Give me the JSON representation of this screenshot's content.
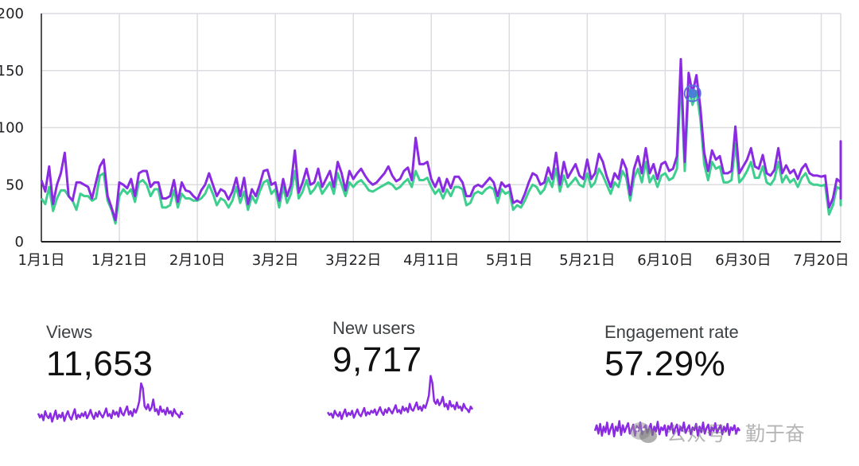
{
  "colors": {
    "views": "#8a2be2",
    "new_users": "#3ecf8e",
    "grid": "#dadce0",
    "axis": "#202124"
  },
  "chart_data": {
    "type": "line",
    "ylim": [
      0,
      200
    ],
    "y_ticks": [
      0,
      50,
      100,
      150,
      200
    ],
    "x_ticks": [
      "1月1日",
      "1月21日",
      "2月10日",
      "3月2日",
      "3月22日",
      "4月11日",
      "5月1日",
      "5月21日",
      "6月10日",
      "6月30日",
      "7月20日"
    ],
    "x_tick_day_index": [
      0,
      20,
      40,
      60,
      80,
      100,
      120,
      140,
      160,
      180,
      200
    ],
    "grid": true,
    "highlight_day_index": 167,
    "series": [
      {
        "color": "#8a2be2",
        "values": [
          54,
          44,
          66,
          33,
          50,
          60,
          78,
          40,
          36,
          52,
          52,
          50,
          48,
          38,
          52,
          66,
          72,
          40,
          30,
          19,
          52,
          50,
          47,
          55,
          40,
          60,
          62,
          62,
          48,
          52,
          52,
          38,
          38,
          40,
          54,
          35,
          52,
          45,
          44,
          40,
          37,
          45,
          50,
          60,
          50,
          40,
          46,
          44,
          37,
          44,
          56,
          40,
          56,
          33,
          46,
          40,
          50,
          62,
          63,
          50,
          52,
          36,
          55,
          40,
          50,
          80,
          43,
          52,
          64,
          50,
          52,
          64,
          48,
          55,
          62,
          48,
          70,
          60,
          45,
          62,
          55,
          60,
          64,
          58,
          53,
          50,
          52,
          56,
          60,
          66,
          58,
          53,
          55,
          62,
          65,
          54,
          91,
          68,
          68,
          70,
          55,
          48,
          56,
          44,
          55,
          47,
          57,
          57,
          52,
          40,
          40,
          48,
          50,
          48,
          52,
          56,
          52,
          40,
          52,
          48,
          50,
          34,
          36,
          34,
          42,
          52,
          60,
          58,
          50,
          52,
          65,
          55,
          78,
          50,
          70,
          56,
          62,
          68,
          58,
          55,
          72,
          55,
          60,
          77,
          70,
          57,
          48,
          60,
          55,
          72,
          64,
          41,
          64,
          75,
          60,
          82,
          60,
          68,
          55,
          68,
          70,
          62,
          64,
          75,
          160,
          70,
          148,
          130,
          146,
          118,
          78,
          62,
          80,
          72,
          75,
          60,
          60,
          62,
          101,
          60,
          66,
          72,
          82,
          66,
          64,
          76,
          60,
          58,
          63,
          82,
          60,
          67,
          60,
          63,
          55,
          64,
          68,
          60,
          58,
          58,
          57,
          58,
          30,
          38,
          55,
          52,
          68,
          88,
          70,
          66,
          60,
          52,
          40,
          48,
          52,
          48,
          50,
          72,
          40,
          38,
          52,
          58,
          80,
          52,
          58,
          60,
          65,
          74,
          64,
          56,
          72,
          50,
          55,
          48,
          55,
          55,
          55,
          50,
          54,
          68,
          65,
          60,
          45,
          55
        ],
        "note": ""
      },
      {
        "color": "#3ecf8e",
        "values": [
          38,
          33,
          48,
          27,
          38,
          45,
          45,
          40,
          36,
          28,
          42,
          40,
          40,
          36,
          38,
          58,
          60,
          36,
          28,
          16,
          40,
          46,
          42,
          46,
          35,
          52,
          54,
          50,
          40,
          46,
          46,
          30,
          30,
          32,
          45,
          30,
          42,
          38,
          38,
          36,
          36,
          38,
          42,
          50,
          42,
          32,
          38,
          36,
          30,
          36,
          48,
          34,
          44,
          28,
          40,
          34,
          44,
          52,
          54,
          42,
          46,
          30,
          48,
          34,
          42,
          62,
          38,
          44,
          54,
          42,
          46,
          52,
          42,
          47,
          52,
          42,
          60,
          50,
          40,
          52,
          48,
          52,
          54,
          50,
          45,
          44,
          46,
          48,
          50,
          52,
          50,
          46,
          48,
          52,
          55,
          48,
          62,
          54,
          54,
          56,
          48,
          42,
          46,
          38,
          46,
          40,
          48,
          48,
          46,
          32,
          34,
          42,
          44,
          42,
          46,
          48,
          46,
          34,
          46,
          42,
          44,
          28,
          32,
          30,
          36,
          44,
          50,
          48,
          42,
          46,
          56,
          48,
          64,
          44,
          58,
          48,
          52,
          56,
          50,
          48,
          60,
          48,
          52,
          64,
          58,
          50,
          42,
          52,
          48,
          62,
          56,
          36,
          56,
          64,
          52,
          70,
          52,
          58,
          48,
          58,
          60,
          54,
          56,
          64,
          145,
          62,
          136,
          120,
          132,
          108,
          68,
          54,
          70,
          64,
          66,
          52,
          52,
          54,
          86,
          52,
          56,
          62,
          70,
          56,
          56,
          66,
          52,
          50,
          55,
          70,
          52,
          58,
          52,
          55,
          48,
          56,
          60,
          52,
          50,
          50,
          49,
          50,
          24,
          32,
          48,
          46,
          60,
          76,
          60,
          56,
          52,
          44,
          34,
          42,
          46,
          42,
          44,
          62,
          34,
          32,
          46,
          50,
          68,
          44,
          50,
          52,
          56,
          64,
          56,
          48,
          62,
          44,
          48,
          42,
          48,
          48,
          48,
          44,
          48,
          58,
          56,
          52,
          38,
          48
        ],
        "note": ""
      }
    ]
  },
  "metrics": [
    {
      "label": "Views",
      "value": "11,653",
      "spark": [
        52,
        46,
        50,
        42,
        55,
        48,
        45,
        52,
        40,
        48,
        56,
        44,
        50,
        46,
        53,
        41,
        49,
        55,
        47,
        43,
        51,
        58,
        44,
        50,
        46,
        52,
        48,
        54,
        45,
        50,
        57,
        49,
        44,
        53,
        47,
        55,
        50,
        46,
        52,
        59,
        48,
        51,
        45,
        56,
        50,
        54,
        47,
        60,
        52,
        49,
        56,
        62,
        50,
        55,
        48,
        58,
        53,
        60,
        70,
        95,
        88,
        62,
        58,
        65,
        56,
        60,
        72,
        55,
        58,
        50,
        62,
        54,
        57,
        50,
        60,
        52,
        55,
        48,
        58,
        52,
        50,
        46,
        54,
        50
      ]
    },
    {
      "label": "New users",
      "value": "9,717",
      "spark": [
        48,
        44,
        46,
        40,
        50,
        45,
        42,
        48,
        38,
        46,
        52,
        42,
        47,
        44,
        50,
        40,
        46,
        52,
        45,
        42,
        48,
        54,
        43,
        48,
        45,
        50,
        47,
        52,
        44,
        49,
        55,
        48,
        44,
        52,
        47,
        54,
        50,
        46,
        52,
        58,
        48,
        51,
        46,
        56,
        50,
        54,
        48,
        60,
        52,
        50,
        56,
        62,
        52,
        56,
        50,
        58,
        54,
        62,
        72,
        100,
        90,
        64,
        60,
        66,
        58,
        62,
        70,
        56,
        60,
        52,
        64,
        56,
        58,
        52,
        62,
        54,
        56,
        50,
        60,
        54,
        52,
        48,
        56,
        52
      ]
    },
    {
      "label": "Engagement rate",
      "value": "57.29%",
      "spark": [
        52,
        60,
        48,
        62,
        45,
        58,
        50,
        64,
        47,
        55,
        62,
        44,
        58,
        52,
        66,
        46,
        60,
        50,
        57,
        63,
        48,
        54,
        61,
        45,
        59,
        52,
        64,
        47,
        56,
        60,
        49,
        55,
        62,
        46,
        58,
        51,
        65,
        47,
        57,
        53,
        60,
        45,
        59,
        54,
        63,
        48,
        56,
        61,
        46,
        58,
        52,
        64,
        49,
        55,
        60,
        47,
        57,
        53,
        62,
        45,
        58,
        50,
        64,
        48,
        56,
        61,
        46,
        57,
        52,
        63,
        49,
        55,
        60,
        47,
        58,
        51,
        62,
        46,
        57,
        53,
        60,
        48,
        56,
        52
      ]
    }
  ],
  "watermark": {
    "text": "公众号 · 勤于奋",
    "icon": "wechat-icon"
  }
}
